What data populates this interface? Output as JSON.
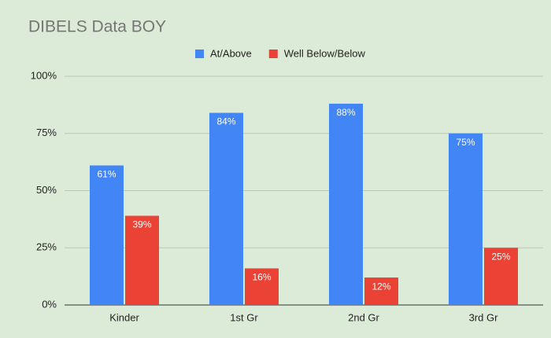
{
  "chart_data": {
    "type": "bar",
    "title": "DIBELS Data BOY",
    "categories": [
      "Kinder",
      "1st Gr",
      "2nd Gr",
      "3rd Gr"
    ],
    "series": [
      {
        "name": "At/Above",
        "color": "#4285f4",
        "values": [
          61,
          84,
          88,
          75
        ],
        "value_labels": [
          "61%",
          "84%",
          "88%",
          "75%"
        ]
      },
      {
        "name": "Well Below/Below",
        "color": "#ea4335",
        "values": [
          39,
          16,
          12,
          25
        ],
        "value_labels": [
          "39%",
          "16%",
          "12%",
          "25%"
        ]
      }
    ],
    "ylim": [
      0,
      100
    ],
    "yticks": [
      {
        "value": 0,
        "label": "0%"
      },
      {
        "value": 25,
        "label": "25%"
      },
      {
        "value": 50,
        "label": "50%"
      },
      {
        "value": 75,
        "label": "75%"
      },
      {
        "value": 100,
        "label": "100%"
      }
    ],
    "grid": true,
    "legend": "top"
  }
}
